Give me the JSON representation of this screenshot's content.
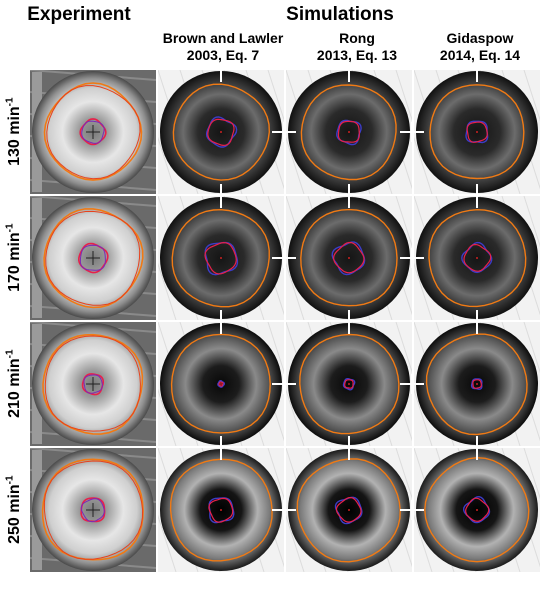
{
  "headers": {
    "experiment": "Experiment",
    "simulations": "Simulations",
    "columns": [
      {
        "line1": "Brown and Lawler",
        "line2": "2003, Eq. 7"
      },
      {
        "line1": "Rong",
        "line2": "2013, Eq. 13"
      },
      {
        "line1": "Gidaspow",
        "line2": "2014, Eq. 14"
      }
    ]
  },
  "rows": [
    {
      "speed": "130 min",
      "unit_exp": "-1"
    },
    {
      "speed": "170 min",
      "unit_exp": "-1"
    },
    {
      "speed": "210 min",
      "unit_exp": "-1"
    },
    {
      "speed": "250 min",
      "unit_exp": "-1"
    }
  ],
  "colors": {
    "outer_contour": "#f07a14",
    "outer_contour_exp": "#e8421c",
    "inner_contour_red": "#e8204a",
    "inner_contour_blue": "#3c3cc8",
    "crosshair": "#ffffff"
  }
}
